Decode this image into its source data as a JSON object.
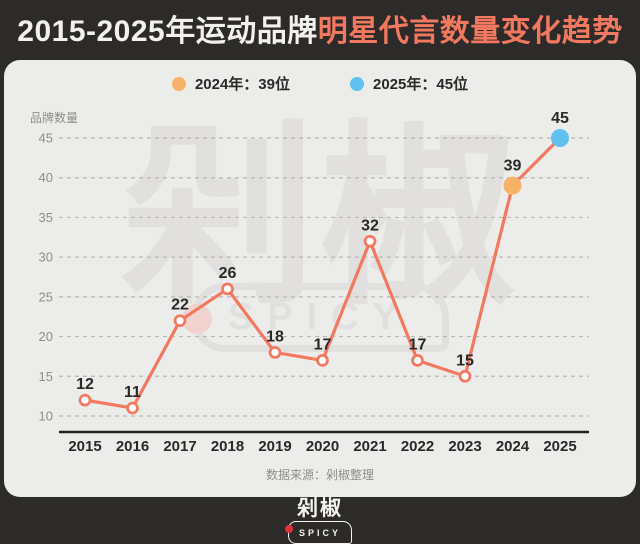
{
  "title": {
    "prefix": "2015-2025年运动品牌",
    "highlight": "明星代言数量变化趋势"
  },
  "legend": {
    "items": [
      {
        "label": "2024年：39位",
        "color": "#f7b267"
      },
      {
        "label": "2025年：45位",
        "color": "#5fc1ef"
      }
    ]
  },
  "chart_data": {
    "type": "line",
    "title": "2015-2025年运动品牌明星代言数量变化趋势",
    "x": [
      "2015",
      "2016",
      "2017",
      "2018",
      "2019",
      "2020",
      "2021",
      "2022",
      "2023",
      "2024",
      "2025"
    ],
    "values": [
      12,
      11,
      22,
      26,
      18,
      17,
      32,
      17,
      15,
      39,
      45
    ],
    "ylabel": "品牌数量",
    "xlabel": "",
    "yticks": [
      10,
      15,
      20,
      25,
      30,
      35,
      40,
      45
    ],
    "ylim": [
      10,
      45
    ],
    "grid": "horizontal-dashed",
    "legend_position": "top-center",
    "line_color": "#f2795f",
    "open_marker_fill": "#fdfdfd",
    "filled_points": {
      "9": "#f7b267",
      "10": "#5fc1ef"
    },
    "label_color": "#2b2928",
    "tick_color": "#8f8d8b",
    "grid_color": "#b9b7b5",
    "axis_color": "#262422"
  },
  "watermark": {
    "text": "剁椒",
    "subtext": "SPICY"
  },
  "source": "数据来源：剁椒整理",
  "footer_logo": {
    "text": "剁椒",
    "subtext": "SPICY"
  },
  "colors": {
    "background": "#2d2b29",
    "card": "#ececea",
    "title_accent": "#f2795f"
  }
}
